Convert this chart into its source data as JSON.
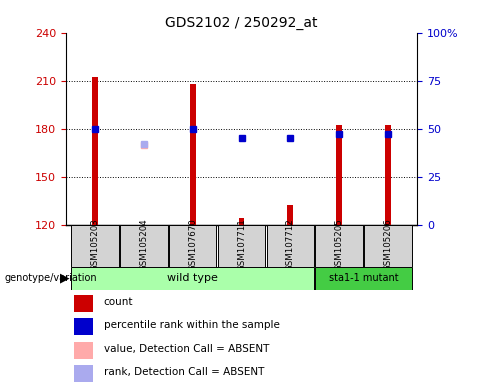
{
  "title": "GDS2102 / 250292_at",
  "samples": [
    "GSM105203",
    "GSM105204",
    "GSM107670",
    "GSM107711",
    "GSM107712",
    "GSM105205",
    "GSM105206"
  ],
  "left_ylim": [
    120,
    240
  ],
  "left_yticks": [
    120,
    150,
    180,
    210,
    240
  ],
  "right_ylim": [
    0,
    100
  ],
  "right_yticks": [
    0,
    25,
    50,
    75,
    100
  ],
  "right_yticklabels": [
    "0",
    "25",
    "50",
    "75",
    "100%"
  ],
  "bar_bottom": 120,
  "bar_color": "#cc0000",
  "bar_heights": [
    212,
    120,
    208,
    124,
    132,
    182,
    182
  ],
  "bar_detected": [
    true,
    false,
    true,
    true,
    true,
    true,
    true
  ],
  "percentile_ranks_right": [
    50,
    null,
    50,
    45,
    45,
    47,
    47
  ],
  "absent_value_left": [
    null,
    170,
    null,
    null,
    null,
    null,
    null
  ],
  "absent_rank_right": [
    null,
    42,
    null,
    null,
    null,
    null,
    null
  ],
  "blue_marker_color": "#0000cc",
  "light_blue_color": "#aaaaee",
  "light_red_color": "#ffaaaa",
  "wild_type_indices": [
    0,
    1,
    2,
    3,
    4
  ],
  "mutant_indices": [
    5,
    6
  ],
  "wild_type_label": "wild type",
  "mutant_label": "sta1-1 mutant",
  "wild_type_color": "#aaffaa",
  "mutant_color": "#44cc44",
  "genotype_label": "genotype/variation",
  "legend_items": [
    {
      "label": "count",
      "color": "#cc0000"
    },
    {
      "label": "percentile rank within the sample",
      "color": "#0000cc"
    },
    {
      "label": "value, Detection Call = ABSENT",
      "color": "#ffaaaa"
    },
    {
      "label": "rank, Detection Call = ABSENT",
      "color": "#aaaaee"
    }
  ],
  "bar_width": 0.12,
  "marker_size": 5,
  "left_axis_color": "#cc0000",
  "right_axis_color": "#0000cc",
  "grid_color": "black",
  "grid_linestyle": ":"
}
